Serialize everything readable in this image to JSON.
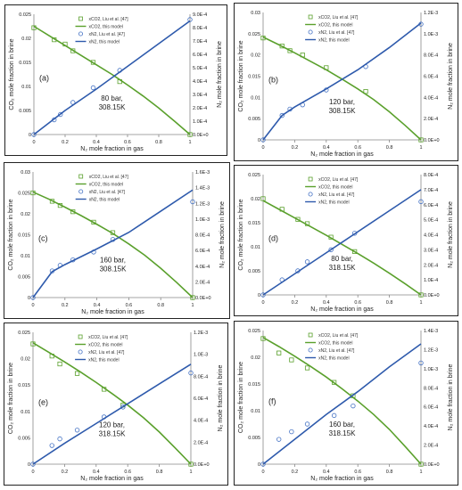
{
  "chart_data": [
    {
      "type": "line",
      "panel_label": "(a)",
      "annotation": [
        "80 bar,",
        "308.15K"
      ],
      "xlabel": "N₂ mole fraction in gas",
      "ylabel_left": "CO₂ mole fraction in brine",
      "ylabel_right": "N₂ mole fraction in brine",
      "xlim": [
        0,
        1
      ],
      "xticks": [
        "0",
        "0.2",
        "0.4",
        "0.6",
        "0.8",
        "1"
      ],
      "ylim_left": [
        0,
        0.025
      ],
      "yticks_left": [
        "0",
        "0.005",
        "0.01",
        "0.015",
        "0.02",
        "0.025"
      ],
      "ylim_right": [
        0,
        0.0009
      ],
      "yticks_right": [
        "0.0E+0",
        "1.0E-4",
        "2.0E-4",
        "3.0E-4",
        "4.0E-4",
        "5.0E-4",
        "6.0E-4",
        "7.0E-4",
        "8.0E-4",
        "9.0E-4"
      ],
      "legend": {
        "position": "top-center",
        "entries": [
          "xCO2, Liu et al. [47]",
          "xCO2, this model",
          "xN2, Liu et al. [47]",
          "xN2, this model"
        ]
      },
      "series": [
        {
          "name": "xCO2, Liu et al. [47]",
          "axis": "left",
          "color": "#5aa02c",
          "marker": "square",
          "x": [
            0,
            0.13,
            0.2,
            0.25,
            0.38,
            0.55,
            1
          ],
          "values": [
            0.0222,
            0.0197,
            0.0188,
            0.0174,
            0.015,
            0.011,
            0
          ]
        },
        {
          "name": "xCO2, this model",
          "axis": "left",
          "color": "#5aa02c",
          "x": [
            0,
            0.1,
            0.2,
            0.3,
            0.4,
            0.5,
            0.6,
            0.7,
            0.8,
            0.9,
            1
          ],
          "values": [
            0.0225,
            0.0205,
            0.0185,
            0.0165,
            0.0145,
            0.0125,
            0.0103,
            0.008,
            0.0055,
            0.0028,
            0
          ]
        },
        {
          "name": "xN2, Liu et al. [47]",
          "axis": "right",
          "color": "#4472c4",
          "marker": "circle",
          "x": [
            0,
            0.13,
            0.17,
            0.25,
            0.38,
            0.55,
            1
          ],
          "values": [
            0,
            0.00011,
            0.00015,
            0.00024,
            0.00035,
            0.00048,
            0.00086
          ]
        },
        {
          "name": "xN2, this model",
          "axis": "right",
          "color": "#2e5aac",
          "x": [
            0,
            0.2,
            0.4,
            0.6,
            0.8,
            1
          ],
          "values": [
            0,
            0.00018,
            0.00034,
            0.00051,
            0.00068,
            0.00085
          ]
        }
      ]
    },
    {
      "type": "line",
      "panel_label": "(b)",
      "annotation": [
        "120 bar,",
        "308.15K"
      ],
      "xlabel": "N₂ mole fraction in gas",
      "ylabel_left": "CO₂ mole fraction in brine",
      "ylabel_right": "N₂ mole fraction in brine",
      "xlim": [
        0,
        1
      ],
      "xticks": [
        "0",
        "0.2",
        "0.4",
        "0.6",
        "0.8",
        "1"
      ],
      "ylim_left": [
        0,
        0.03
      ],
      "yticks_left": [
        "0",
        "0.005",
        "0.01",
        "0.015",
        "0.02",
        "0.025",
        "0.03"
      ],
      "ylim_right": [
        0,
        0.0012
      ],
      "yticks_right": [
        "0.0E+0",
        "2.0E-4",
        "4.0E-4",
        "6.0E-4",
        "8.0E-4",
        "1.0E-3",
        "1.2E-3"
      ],
      "legend": {
        "position": "top-center",
        "entries": [
          "xCO2, Liu et al. [47]",
          "xCO2, this model",
          "xN2, Liu et al. [47]",
          "xN2, this model"
        ]
      },
      "series": [
        {
          "name": "xCO2, Liu et al. [47]",
          "axis": "left",
          "color": "#5aa02c",
          "marker": "square",
          "x": [
            0,
            0.12,
            0.17,
            0.25,
            0.4,
            0.65,
            1
          ],
          "values": [
            0.024,
            0.0221,
            0.021,
            0.02,
            0.017,
            0.0114,
            0
          ]
        },
        {
          "name": "xCO2, this model",
          "axis": "left",
          "color": "#5aa02c",
          "x": [
            0,
            0.1,
            0.2,
            0.3,
            0.4,
            0.5,
            0.6,
            0.7,
            0.8,
            0.9,
            1
          ],
          "values": [
            0.0242,
            0.0224,
            0.0205,
            0.0185,
            0.0165,
            0.0143,
            0.012,
            0.0095,
            0.0066,
            0.0034,
            0
          ]
        },
        {
          "name": "xN2, Liu et al. [47]",
          "axis": "right",
          "color": "#4472c4",
          "marker": "circle",
          "x": [
            0,
            0.12,
            0.17,
            0.25,
            0.4,
            0.65,
            1
          ],
          "values": [
            0,
            0.00023,
            0.00029,
            0.00033,
            0.00047,
            0.00069,
            0.00109
          ]
        },
        {
          "name": "xN2, this model",
          "axis": "right",
          "color": "#2e5aac",
          "x": [
            0,
            0.12,
            0.2,
            0.4,
            0.6,
            0.8,
            1
          ],
          "values": [
            0,
            0.00023,
            0.00031,
            0.00048,
            0.00066,
            0.00087,
            0.0011
          ]
        }
      ]
    },
    {
      "type": "line",
      "panel_label": "(c)",
      "annotation": [
        "160 bar,",
        "308.15K"
      ],
      "xlabel": "N₂ mole fraction in gas",
      "ylabel_left": "CO₂ mole fraction in brine",
      "ylabel_right": "N₂ mole fraction in brine",
      "xlim": [
        0,
        1
      ],
      "xticks": [
        "0",
        "0.2",
        "0.4",
        "0.6",
        "0.8",
        "1"
      ],
      "ylim_left": [
        0,
        0.03
      ],
      "yticks_left": [
        "0",
        "0.005",
        "0.01",
        "0.015",
        "0.02",
        "0.025",
        "0.03"
      ],
      "ylim_right": [
        0,
        0.0016
      ],
      "yticks_right": [
        "0.0E+0",
        "2.0E-4",
        "4.0E-4",
        "6.0E-4",
        "8.0E-4",
        "1.0E-3",
        "1.2E-3",
        "1.4E-3",
        "1.6E-3"
      ],
      "legend": {
        "position": "top-center",
        "entries": [
          "xCO2, Liu et al. [47]",
          "xCO2, this model",
          "xN2, Liu et al. [47]",
          "xN2, this model"
        ]
      },
      "series": [
        {
          "name": "xCO2, Liu et al. [47]",
          "axis": "left",
          "color": "#5aa02c",
          "marker": "square",
          "x": [
            0,
            0.12,
            0.17,
            0.25,
            0.38,
            0.5,
            1
          ],
          "values": [
            0.025,
            0.023,
            0.022,
            0.0205,
            0.018,
            0.0155,
            0
          ]
        },
        {
          "name": "xCO2, this model",
          "axis": "left",
          "color": "#5aa02c",
          "x": [
            0,
            0.1,
            0.2,
            0.3,
            0.4,
            0.5,
            0.6,
            0.7,
            0.8,
            0.9,
            1
          ],
          "values": [
            0.0252,
            0.0235,
            0.0216,
            0.0196,
            0.0175,
            0.0153,
            0.0128,
            0.0101,
            0.007,
            0.0036,
            0
          ]
        },
        {
          "name": "xN2, Liu et al. [47]",
          "axis": "right",
          "color": "#4472c4",
          "marker": "circle",
          "x": [
            0,
            0.12,
            0.17,
            0.25,
            0.38,
            0.5,
            1
          ],
          "values": [
            0,
            0.00034,
            0.00041,
            0.00048,
            0.00058,
            0.00074,
            0.00122
          ]
        },
        {
          "name": "xN2, this model",
          "axis": "right",
          "color": "#2e5aac",
          "x": [
            0,
            0.12,
            0.2,
            0.4,
            0.6,
            0.8,
            1
          ],
          "values": [
            0,
            0.00033,
            0.00042,
            0.00062,
            0.00083,
            0.0011,
            0.00137
          ]
        }
      ]
    },
    {
      "type": "line",
      "panel_label": "(d)",
      "annotation": [
        "80 bar,",
        "318.15K"
      ],
      "xlabel": "N₂ mole fraction in gas",
      "ylabel_left": "CO₂ mole fraction in brine",
      "ylabel_right": "N₂ mole fraction in brine",
      "xlim": [
        0,
        1
      ],
      "xticks": [
        "0",
        "0.2",
        "0.4",
        "0.6",
        "0.8",
        "1"
      ],
      "ylim_left": [
        0,
        0.025
      ],
      "yticks_left": [
        "0",
        "0.005",
        "0.01",
        "0.015",
        "0.02",
        "0.025"
      ],
      "ylim_right": [
        0,
        0.0008
      ],
      "yticks_right": [
        "0.0E+0",
        "1.0E-4",
        "2.0E-4",
        "3.0E-4",
        "4.0E-4",
        "5.0E-4",
        "6.0E-4",
        "7.0E-4",
        "8.0E-4"
      ],
      "legend": {
        "position": "top-center",
        "entries": [
          "xCO2, Liu et al. [47]",
          "xCO2, this model",
          "xN2, Liu et al. [47]",
          "xN2, this model"
        ]
      },
      "series": [
        {
          "name": "xCO2, Liu et al. [47]",
          "axis": "left",
          "color": "#5aa02c",
          "marker": "square",
          "x": [
            0,
            0.12,
            0.22,
            0.28,
            0.43,
            0.58,
            1
          ],
          "values": [
            0.02,
            0.0178,
            0.0157,
            0.0148,
            0.012,
            0.009,
            0
          ]
        },
        {
          "name": "xCO2, this model",
          "axis": "left",
          "color": "#5aa02c",
          "x": [
            0,
            0.1,
            0.2,
            0.3,
            0.4,
            0.5,
            0.6,
            0.7,
            0.8,
            0.9,
            1
          ],
          "values": [
            0.0196,
            0.0178,
            0.016,
            0.0142,
            0.0124,
            0.0105,
            0.0086,
            0.0066,
            0.0045,
            0.0023,
            0
          ]
        },
        {
          "name": "xN2, Liu et al. [47]",
          "axis": "right",
          "color": "#4472c4",
          "marker": "circle",
          "x": [
            0,
            0.12,
            0.22,
            0.28,
            0.43,
            0.58,
            1
          ],
          "values": [
            0,
            0.0001,
            0.00016,
            0.00022,
            0.0003,
            0.00041,
            0.00062
          ]
        },
        {
          "name": "xN2, this model",
          "axis": "right",
          "color": "#2e5aac",
          "x": [
            0,
            0.2,
            0.4,
            0.6,
            0.8,
            1
          ],
          "values": [
            0,
            0.00014,
            0.00028,
            0.00042,
            0.00056,
            0.0007
          ]
        }
      ]
    },
    {
      "type": "line",
      "panel_label": "(e)",
      "annotation": [
        "120 bar,",
        "318.15K"
      ],
      "xlabel": "N₂ mole fraction in gas",
      "ylabel_left": "CO₂ mole fraction in brine",
      "ylabel_right": "N₂ mole fraction in brine",
      "xlim": [
        0,
        1
      ],
      "xticks": [
        "0",
        "0.2",
        "0.4",
        "0.6",
        "0.8",
        "1"
      ],
      "ylim_left": [
        0,
        0.025
      ],
      "yticks_left": [
        "0",
        "0.005",
        "0.01",
        "0.015",
        "0.02",
        "0.025"
      ],
      "ylim_right": [
        0,
        0.0012
      ],
      "yticks_right": [
        "0.0E+0",
        "2.0E-4",
        "4.0E-4",
        "6.0E-4",
        "8.0E-4",
        "1.0E-3",
        "1.2E-3"
      ],
      "legend": {
        "position": "top-center",
        "entries": [
          "xCO2, Liu et al. [47]",
          "xCO2, this model",
          "xN2, Liu et al. [47]",
          "xN2, this model"
        ]
      },
      "series": [
        {
          "name": "xCO2, Liu et al. [47]",
          "axis": "left",
          "color": "#5aa02c",
          "marker": "square",
          "x": [
            0,
            0.12,
            0.17,
            0.28,
            0.45,
            0.57,
            1
          ],
          "values": [
            0.0228,
            0.0205,
            0.019,
            0.0172,
            0.0142,
            0.0112,
            0
          ]
        },
        {
          "name": "xCO2, this model",
          "axis": "left",
          "color": "#5aa02c",
          "x": [
            0,
            0.1,
            0.2,
            0.3,
            0.4,
            0.5,
            0.6,
            0.7,
            0.8,
            0.9,
            1
          ],
          "values": [
            0.023,
            0.0212,
            0.0194,
            0.0175,
            0.0155,
            0.0134,
            0.0112,
            0.0088,
            0.0061,
            0.0031,
            0
          ]
        },
        {
          "name": "xN2, Liu et al. [47]",
          "axis": "right",
          "color": "#4472c4",
          "marker": "circle",
          "x": [
            0,
            0.12,
            0.17,
            0.28,
            0.45,
            0.57,
            1
          ],
          "values": [
            0,
            0.00017,
            0.00023,
            0.00031,
            0.00043,
            0.00052,
            0.00083
          ]
        },
        {
          "name": "xN2, this model",
          "axis": "right",
          "color": "#2e5aac",
          "x": [
            0,
            0.2,
            0.4,
            0.6,
            0.8,
            1
          ],
          "values": [
            0,
            0.00019,
            0.00037,
            0.00055,
            0.00073,
            0.00091
          ]
        }
      ]
    },
    {
      "type": "line",
      "panel_label": "(f)",
      "annotation": [
        "160 bar,",
        "318.15K"
      ],
      "xlabel": "N₂ mole fraction in gas",
      "ylabel_left": "CO₂ mole fraction in brine",
      "ylabel_right": "N₂ mole fraction in brine",
      "xlim": [
        0,
        1
      ],
      "xticks": [
        "0",
        "0.2",
        "0.4",
        "0.6",
        "0.8",
        "1"
      ],
      "ylim_left": [
        0,
        0.025
      ],
      "yticks_left": [
        "0",
        "0.005",
        "0.01",
        "0.015",
        "0.02",
        "0.025"
      ],
      "ylim_right": [
        0,
        0.0014
      ],
      "yticks_right": [
        "0.0E+0",
        "2.0E-4",
        "4.0E-4",
        "6.0E-4",
        "8.0E-4",
        "1.0E-3",
        "1.2E-3",
        "1.4E-3"
      ],
      "legend": {
        "position": "top-center",
        "entries": [
          "xCO2, Liu et al. [47]",
          "xCO2, this model",
          "xN2, Liu et al. [47]",
          "xN2, this model"
        ]
      },
      "series": [
        {
          "name": "xCO2, Liu et al. [47]",
          "axis": "left",
          "color": "#5aa02c",
          "marker": "square",
          "x": [
            0,
            0.1,
            0.18,
            0.28,
            0.45,
            0.57,
            1
          ],
          "values": [
            0.0235,
            0.0208,
            0.0195,
            0.018,
            0.0153,
            0.0128,
            0
          ]
        },
        {
          "name": "xCO2, this model",
          "axis": "left",
          "color": "#5aa02c",
          "x": [
            0,
            0.1,
            0.2,
            0.3,
            0.4,
            0.5,
            0.6,
            0.7,
            0.8,
            0.9,
            1
          ],
          "values": [
            0.0237,
            0.022,
            0.0202,
            0.0183,
            0.0163,
            0.0141,
            0.0118,
            0.0093,
            0.0065,
            0.0033,
            0
          ]
        },
        {
          "name": "xN2, Liu et al. [47]",
          "axis": "right",
          "color": "#4472c4",
          "marker": "circle",
          "x": [
            0,
            0.1,
            0.18,
            0.28,
            0.45,
            0.57,
            1
          ],
          "values": [
            0,
            0.00026,
            0.00034,
            0.00042,
            0.00051,
            0.00061,
            0.00106
          ]
        },
        {
          "name": "xN2, this model",
          "axis": "right",
          "color": "#2e5aac",
          "x": [
            0,
            0.2,
            0.4,
            0.6,
            0.8,
            1
          ],
          "values": [
            0,
            0.00026,
            0.00052,
            0.00076,
            0.00102,
            0.00126
          ]
        }
      ]
    }
  ]
}
